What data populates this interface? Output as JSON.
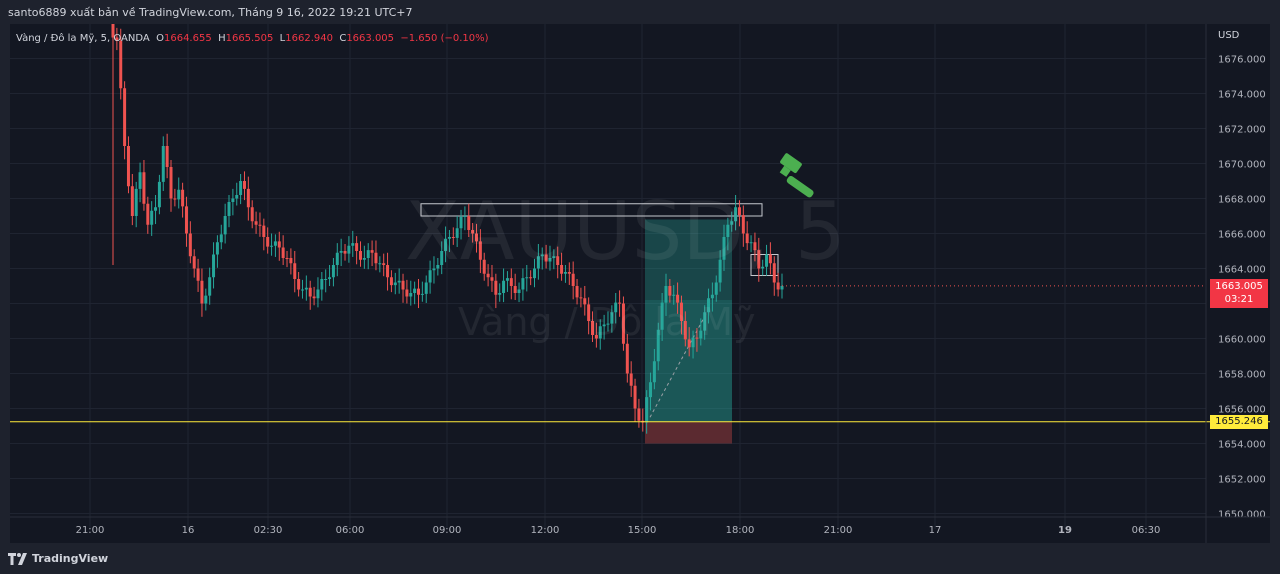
{
  "header": {
    "title": "santo6889 xuất bản về TradingView.com, Tháng 9 16, 2022 19:21 UTC+7"
  },
  "legend": {
    "symbol": "Vàng / Đô la Mỹ, 5, OANDA",
    "open_label": "O",
    "open": "1664.655",
    "high_label": "H",
    "high": "1665.505",
    "low_label": "L",
    "low": "1662.940",
    "close_label": "C",
    "close": "1663.005",
    "change": "−1.650 (−0.10%)"
  },
  "watermark": {
    "ticker": "XAUUSD, 5",
    "name": "Vàng / Đô la Mỹ"
  },
  "axis": {
    "currency": "USD"
  },
  "tags": {
    "current_price": "1663.005",
    "countdown": "03:21",
    "level": "1655.246"
  },
  "footer": {
    "brand": "TradingView"
  },
  "colors": {
    "up": "#26a69a",
    "down": "#ef5350",
    "level_line": "#ffeb3b",
    "background": "#131722",
    "target_zone": "#26a69a",
    "stop_zone": "#ef5350"
  },
  "chart_data": {
    "type": "candlestick",
    "symbol": "XAUUSD",
    "interval": "5",
    "y_ticks": [
      1650,
      1652,
      1654,
      1656,
      1658,
      1660,
      1662,
      1664,
      1666,
      1668,
      1670,
      1672,
      1674,
      1676
    ],
    "y_tick_labels": [
      "1650.000",
      "1652.000",
      "1654.000",
      "1656.000",
      "1658.000",
      "1660.000",
      "1662.000",
      "1664.000",
      "1666.000",
      "1668.000",
      "1670.000",
      "1672.000",
      "1674.000",
      "1676.000"
    ],
    "x_tick_labels": [
      "21:00",
      "16",
      "02:30",
      "06:00",
      "09:00",
      "12:00",
      "15:00",
      "18:00",
      "21:00",
      "17",
      "19",
      "06:30"
    ],
    "x_tick_bold": [
      false,
      false,
      false,
      false,
      false,
      false,
      false,
      false,
      false,
      false,
      true,
      false
    ],
    "ylim": [
      1649.0,
      1678.5
    ],
    "price_series_close": [
      1677.0,
      1671.0,
      1667.0,
      1669.5,
      1666.5,
      1667.5,
      1671.0,
      1668.0,
      1668.5,
      1666.0,
      1664.0,
      1662.0,
      1663.5,
      1665.5,
      1667.0,
      1668.0,
      1669.0,
      1667.5,
      1666.5,
      1665.8,
      1665.3,
      1665.2,
      1664.6,
      1663.4,
      1662.8,
      1662.4,
      1662.8,
      1663.4,
      1664.2,
      1665.0,
      1665.3,
      1665.0,
      1664.6,
      1664.9,
      1664.3,
      1663.5,
      1663.2,
      1662.8,
      1662.6,
      1662.5,
      1663.2,
      1664.0,
      1665.0,
      1665.8,
      1666.3,
      1667.0,
      1666.0,
      1664.5,
      1663.5,
      1662.5,
      1663.3,
      1663.0,
      1662.8,
      1663.5,
      1664.0,
      1664.8,
      1664.6,
      1664.2,
      1663.8,
      1663.0,
      1662.3,
      1661.0,
      1660.0,
      1660.8,
      1661.5,
      1662.0,
      1658.0,
      1656.0,
      1655.2,
      1657.5,
      1660.5,
      1663.0,
      1662.5,
      1661.0,
      1659.5,
      1660.0,
      1661.5,
      1662.5,
      1664.5,
      1666.5,
      1667.5,
      1666.0,
      1665.5,
      1664.0,
      1664.8,
      1663.2,
      1663.005
    ],
    "levels": [
      {
        "price": 1655.246,
        "label": "1655.246"
      }
    ],
    "resistance_box": {
      "top": 1667.7,
      "bottom": 1667.0
    },
    "position": {
      "entry": 1655.25,
      "target": 1666.8,
      "stop": 1654.0
    }
  }
}
